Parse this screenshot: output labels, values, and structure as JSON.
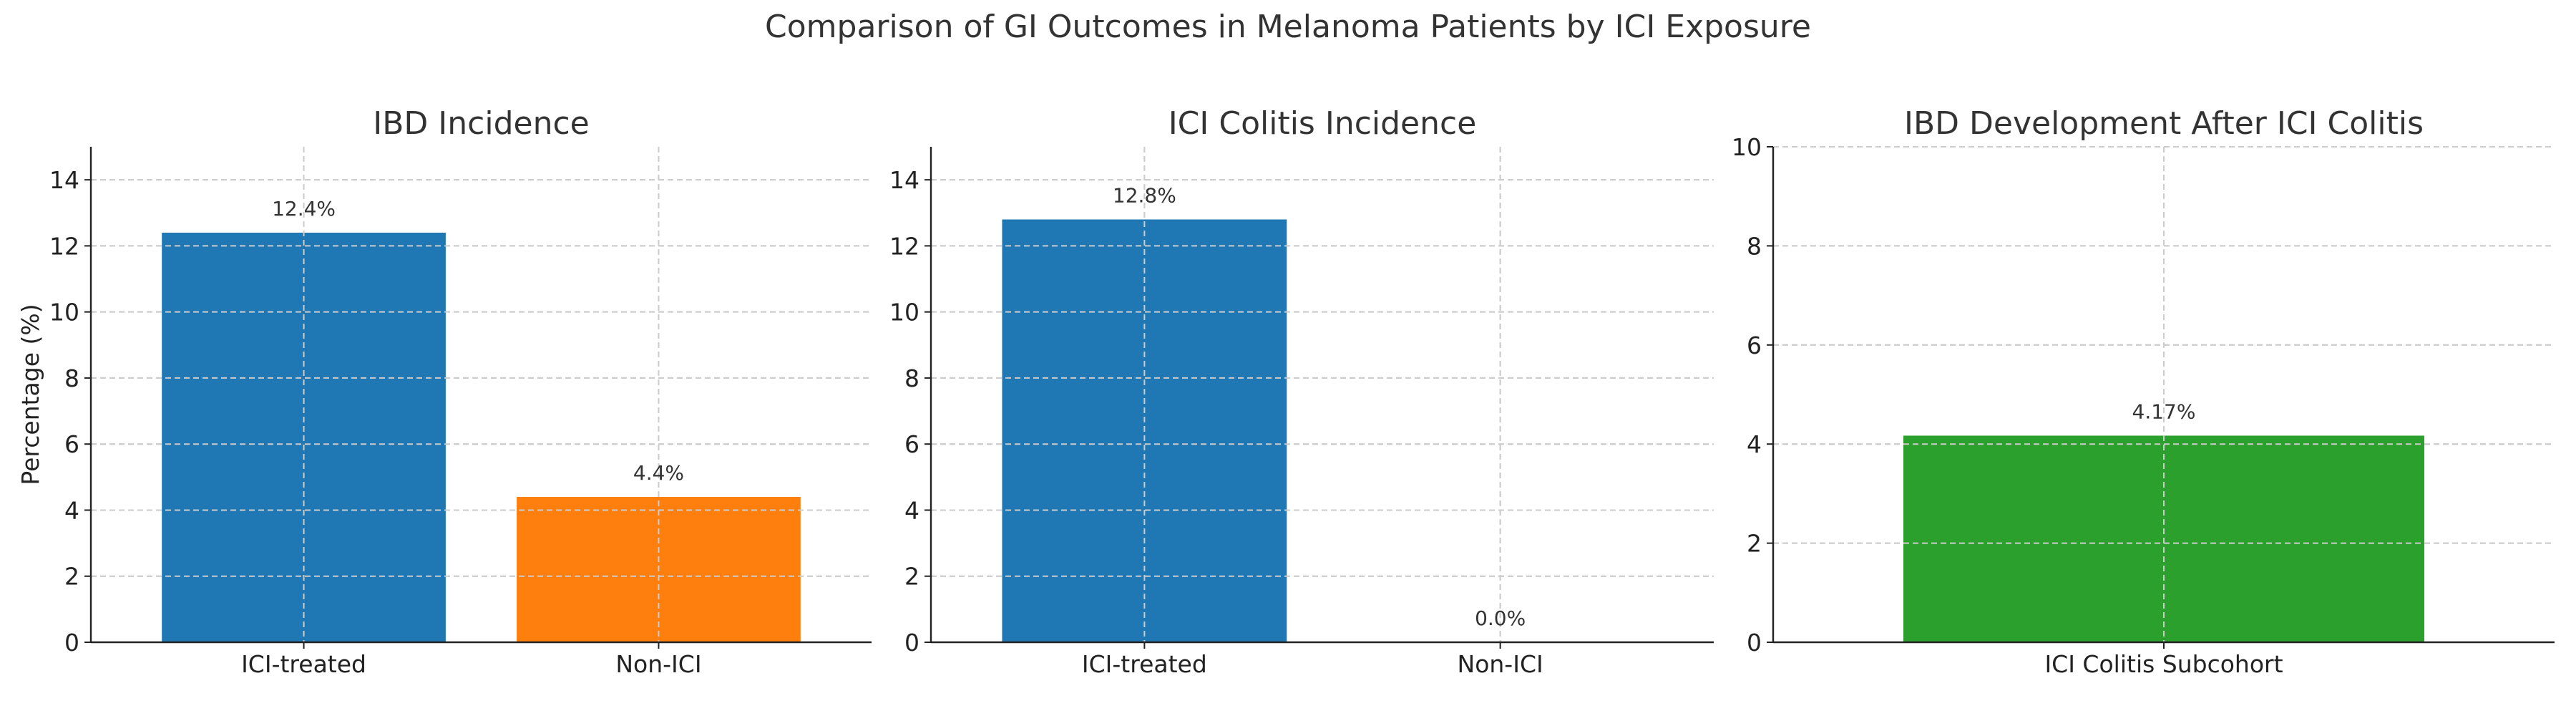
{
  "figure_title": "Comparison of GI Outcomes in Melanoma Patients by ICI Exposure",
  "chart_data": [
    {
      "type": "bar",
      "title": "IBD Incidence",
      "ylabel": "Percentage (%)",
      "xlabel": "",
      "categories": [
        "ICI-treated",
        "Non-ICI"
      ],
      "values": [
        12.4,
        4.4
      ],
      "value_labels": [
        "12.4%",
        "4.4%"
      ],
      "colors": [
        "#1f77b4",
        "#ff7f0e"
      ],
      "ylim": [
        0,
        15
      ],
      "yticks": [
        0,
        2,
        4,
        6,
        8,
        10,
        12,
        14
      ],
      "grid": true
    },
    {
      "type": "bar",
      "title": "ICI Colitis Incidence",
      "ylabel": "",
      "xlabel": "",
      "categories": [
        "ICI-treated",
        "Non-ICI"
      ],
      "values": [
        12.8,
        0.0
      ],
      "value_labels": [
        "12.8%",
        "0.0%"
      ],
      "colors": [
        "#1f77b4",
        "#ff7f0e"
      ],
      "ylim": [
        0,
        15
      ],
      "yticks": [
        0,
        2,
        4,
        6,
        8,
        10,
        12,
        14
      ],
      "grid": true
    },
    {
      "type": "bar",
      "title": "IBD Development After ICI Colitis",
      "ylabel": "",
      "xlabel": "",
      "categories": [
        "ICI Colitis Subcohort"
      ],
      "values": [
        4.17
      ],
      "value_labels": [
        "4.17%"
      ],
      "colors": [
        "#2ca02c"
      ],
      "ylim": [
        0,
        10
      ],
      "yticks": [
        0,
        2,
        4,
        6,
        8,
        10
      ],
      "grid": true
    }
  ]
}
